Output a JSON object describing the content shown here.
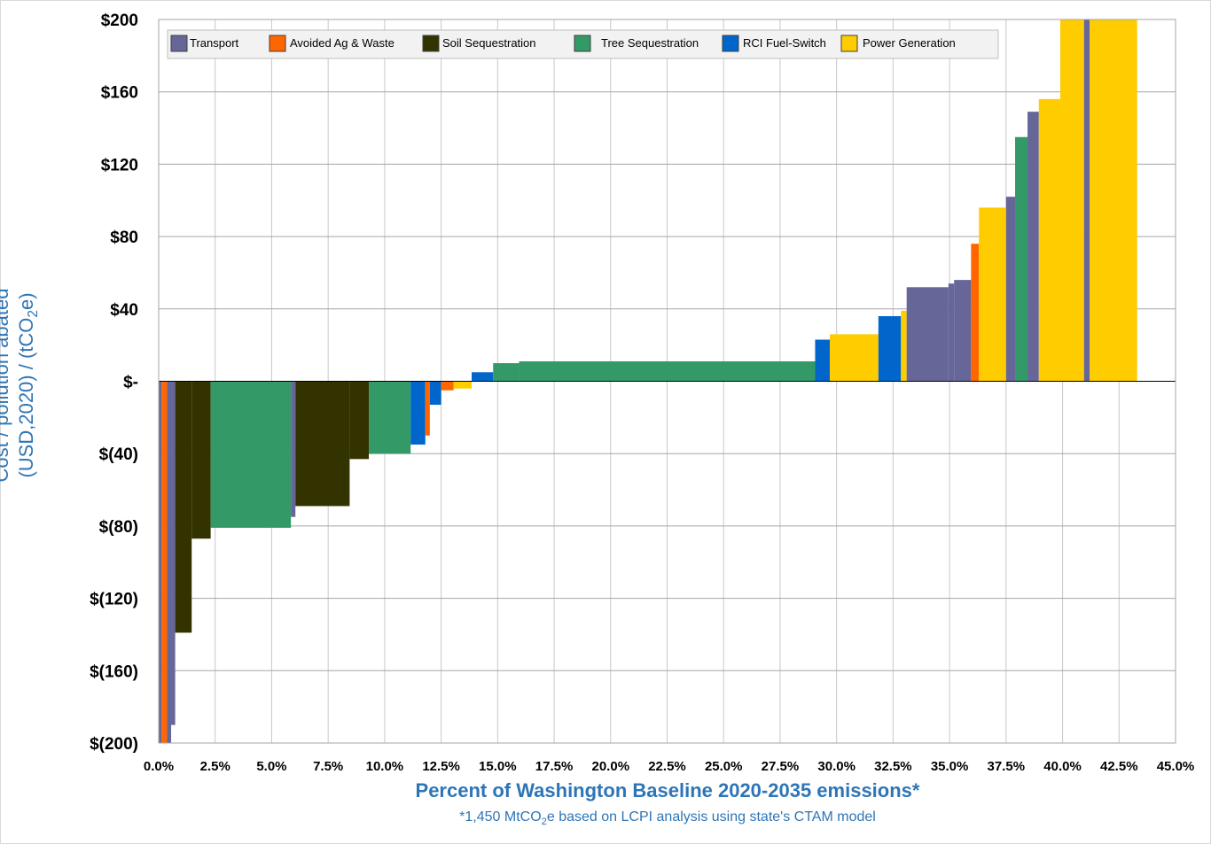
{
  "chart_data": {
    "type": "bar",
    "subtype": "marginal-abatement-cost-curve",
    "xlabel": "Percent of Washington Baseline 2020-2035 emissions*",
    "xnote": {
      "before": "*1,450 MtCO",
      "sub": "2",
      "after": "e based on LCPI analysis using state's CTAM model"
    },
    "ylabel": {
      "line1": "Cost / pollution abated",
      "line2_before": "(USD,2020) / (tCO",
      "line2_sub": "2",
      "line2_after": "e)"
    },
    "xlim": [
      0,
      45
    ],
    "ylim": [
      -200,
      200
    ],
    "x_ticks": [
      "0.0%",
      "2.5%",
      "5.0%",
      "7.5%",
      "10.0%",
      "12.5%",
      "15.0%",
      "17.5%",
      "20.0%",
      "22.5%",
      "25.0%",
      "27.5%",
      "30.0%",
      "32.5%",
      "35.0%",
      "37.5%",
      "40.0%",
      "42.5%",
      "45.0%"
    ],
    "y_ticks": [
      "$200",
      "$160",
      "$120",
      "$80",
      "$40",
      "$-",
      "$(40)",
      "$(80)",
      "$(120)",
      "$(160)",
      "$(200)"
    ],
    "grid": true,
    "legend_position": "top-left",
    "legend": [
      {
        "name": "Transport",
        "color": "#666699"
      },
      {
        "name": "Avoided Ag & Waste",
        "color": "#ff6600"
      },
      {
        "name": "Soil Sequestration",
        "color": "#333300"
      },
      {
        "name": "Tree Sequestration",
        "color": "#339966"
      },
      {
        "name": "RCI Fuel-Switch",
        "color": "#0066cc"
      },
      {
        "name": "Power Generation",
        "color": "#ffcc00"
      }
    ],
    "bars": [
      {
        "sector": "Transport",
        "x0": 0.0,
        "x1": 0.12,
        "cost": -200
      },
      {
        "sector": "Avoided Ag & Waste",
        "x0": 0.12,
        "x1": 0.37,
        "cost": -200
      },
      {
        "sector": "Transport",
        "x0": 0.37,
        "x1": 0.55,
        "cost": -200
      },
      {
        "sector": "Transport",
        "x0": 0.55,
        "x1": 0.73,
        "cost": -190
      },
      {
        "sector": "Soil Sequestration",
        "x0": 0.73,
        "x1": 1.46,
        "cost": -139
      },
      {
        "sector": "Soil Sequestration",
        "x0": 1.46,
        "x1": 2.3,
        "cost": -87
      },
      {
        "sector": "Tree Sequestration",
        "x0": 2.3,
        "x1": 5.85,
        "cost": -81
      },
      {
        "sector": "Transport",
        "x0": 5.85,
        "x1": 6.05,
        "cost": -75
      },
      {
        "sector": "Soil Sequestration",
        "x0": 6.05,
        "x1": 8.45,
        "cost": -69
      },
      {
        "sector": "Soil Sequestration",
        "x0": 8.45,
        "x1": 9.3,
        "cost": -43
      },
      {
        "sector": "Tree Sequestration",
        "x0": 9.3,
        "x1": 11.15,
        "cost": -40
      },
      {
        "sector": "RCI Fuel-Switch",
        "x0": 11.15,
        "x1": 11.8,
        "cost": -35
      },
      {
        "sector": "Avoided Ag & Waste",
        "x0": 11.8,
        "x1": 12.0,
        "cost": -30
      },
      {
        "sector": "RCI Fuel-Switch",
        "x0": 12.0,
        "x1": 12.5,
        "cost": -13
      },
      {
        "sector": "Avoided Ag & Waste",
        "x0": 12.5,
        "x1": 13.05,
        "cost": -5
      },
      {
        "sector": "Power Generation",
        "x0": 13.05,
        "x1": 13.85,
        "cost": -4
      },
      {
        "sector": "RCI Fuel-Switch",
        "x0": 13.85,
        "x1": 14.8,
        "cost": 5
      },
      {
        "sector": "Tree Sequestration",
        "x0": 14.8,
        "x1": 15.95,
        "cost": 10
      },
      {
        "sector": "Tree Sequestration",
        "x0": 15.95,
        "x1": 29.05,
        "cost": 11
      },
      {
        "sector": "RCI Fuel-Switch",
        "x0": 29.05,
        "x1": 29.7,
        "cost": 23
      },
      {
        "sector": "Power Generation",
        "x0": 29.7,
        "x1": 31.85,
        "cost": 26
      },
      {
        "sector": "RCI Fuel-Switch",
        "x0": 31.85,
        "x1": 32.85,
        "cost": 36
      },
      {
        "sector": "Power Generation",
        "x0": 32.85,
        "x1": 33.1,
        "cost": 39
      },
      {
        "sector": "Transport",
        "x0": 33.1,
        "x1": 34.95,
        "cost": 52
      },
      {
        "sector": "Transport",
        "x0": 34.95,
        "x1": 35.2,
        "cost": 54
      },
      {
        "sector": "Transport",
        "x0": 35.2,
        "x1": 35.95,
        "cost": 56
      },
      {
        "sector": "Avoided Ag & Waste",
        "x0": 35.95,
        "x1": 36.3,
        "cost": 76
      },
      {
        "sector": "Power Generation",
        "x0": 36.3,
        "x1": 37.5,
        "cost": 96
      },
      {
        "sector": "Transport",
        "x0": 37.5,
        "x1": 37.9,
        "cost": 102
      },
      {
        "sector": "Tree Sequestration",
        "x0": 37.9,
        "x1": 38.45,
        "cost": 135
      },
      {
        "sector": "Transport",
        "x0": 38.45,
        "x1": 38.95,
        "cost": 149
      },
      {
        "sector": "Power Generation",
        "x0": 38.95,
        "x1": 39.9,
        "cost": 156
      },
      {
        "sector": "Power Generation",
        "x0": 39.9,
        "x1": 40.95,
        "cost": 200
      },
      {
        "sector": "Transport",
        "x0": 40.95,
        "x1": 41.2,
        "cost": 200
      },
      {
        "sector": "Power Generation",
        "x0": 41.2,
        "x1": 43.0,
        "cost": 200
      },
      {
        "sector": "Power Generation",
        "x0": 43.0,
        "x1": 43.3,
        "cost": 200
      }
    ]
  }
}
